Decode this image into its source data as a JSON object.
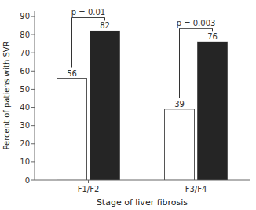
{
  "chart_data": {
    "type": "bar",
    "categories": [
      "F1/F2",
      "F3/F4"
    ],
    "series": [
      {
        "color": "#ffffff",
        "values": [
          56,
          39
        ]
      },
      {
        "color": "#252525",
        "values": [
          82,
          76
        ]
      }
    ],
    "annotations": [
      "p = 0.01",
      "p = 0.003"
    ],
    "xlabel": "Stage of liver fibrosis",
    "ylabel": "Percent of patiens with SVR",
    "ylim": [
      0,
      93
    ],
    "yticks": [
      0,
      10,
      20,
      30,
      40,
      50,
      60,
      70,
      80,
      90
    ],
    "data_labels": true,
    "grid": false
  }
}
